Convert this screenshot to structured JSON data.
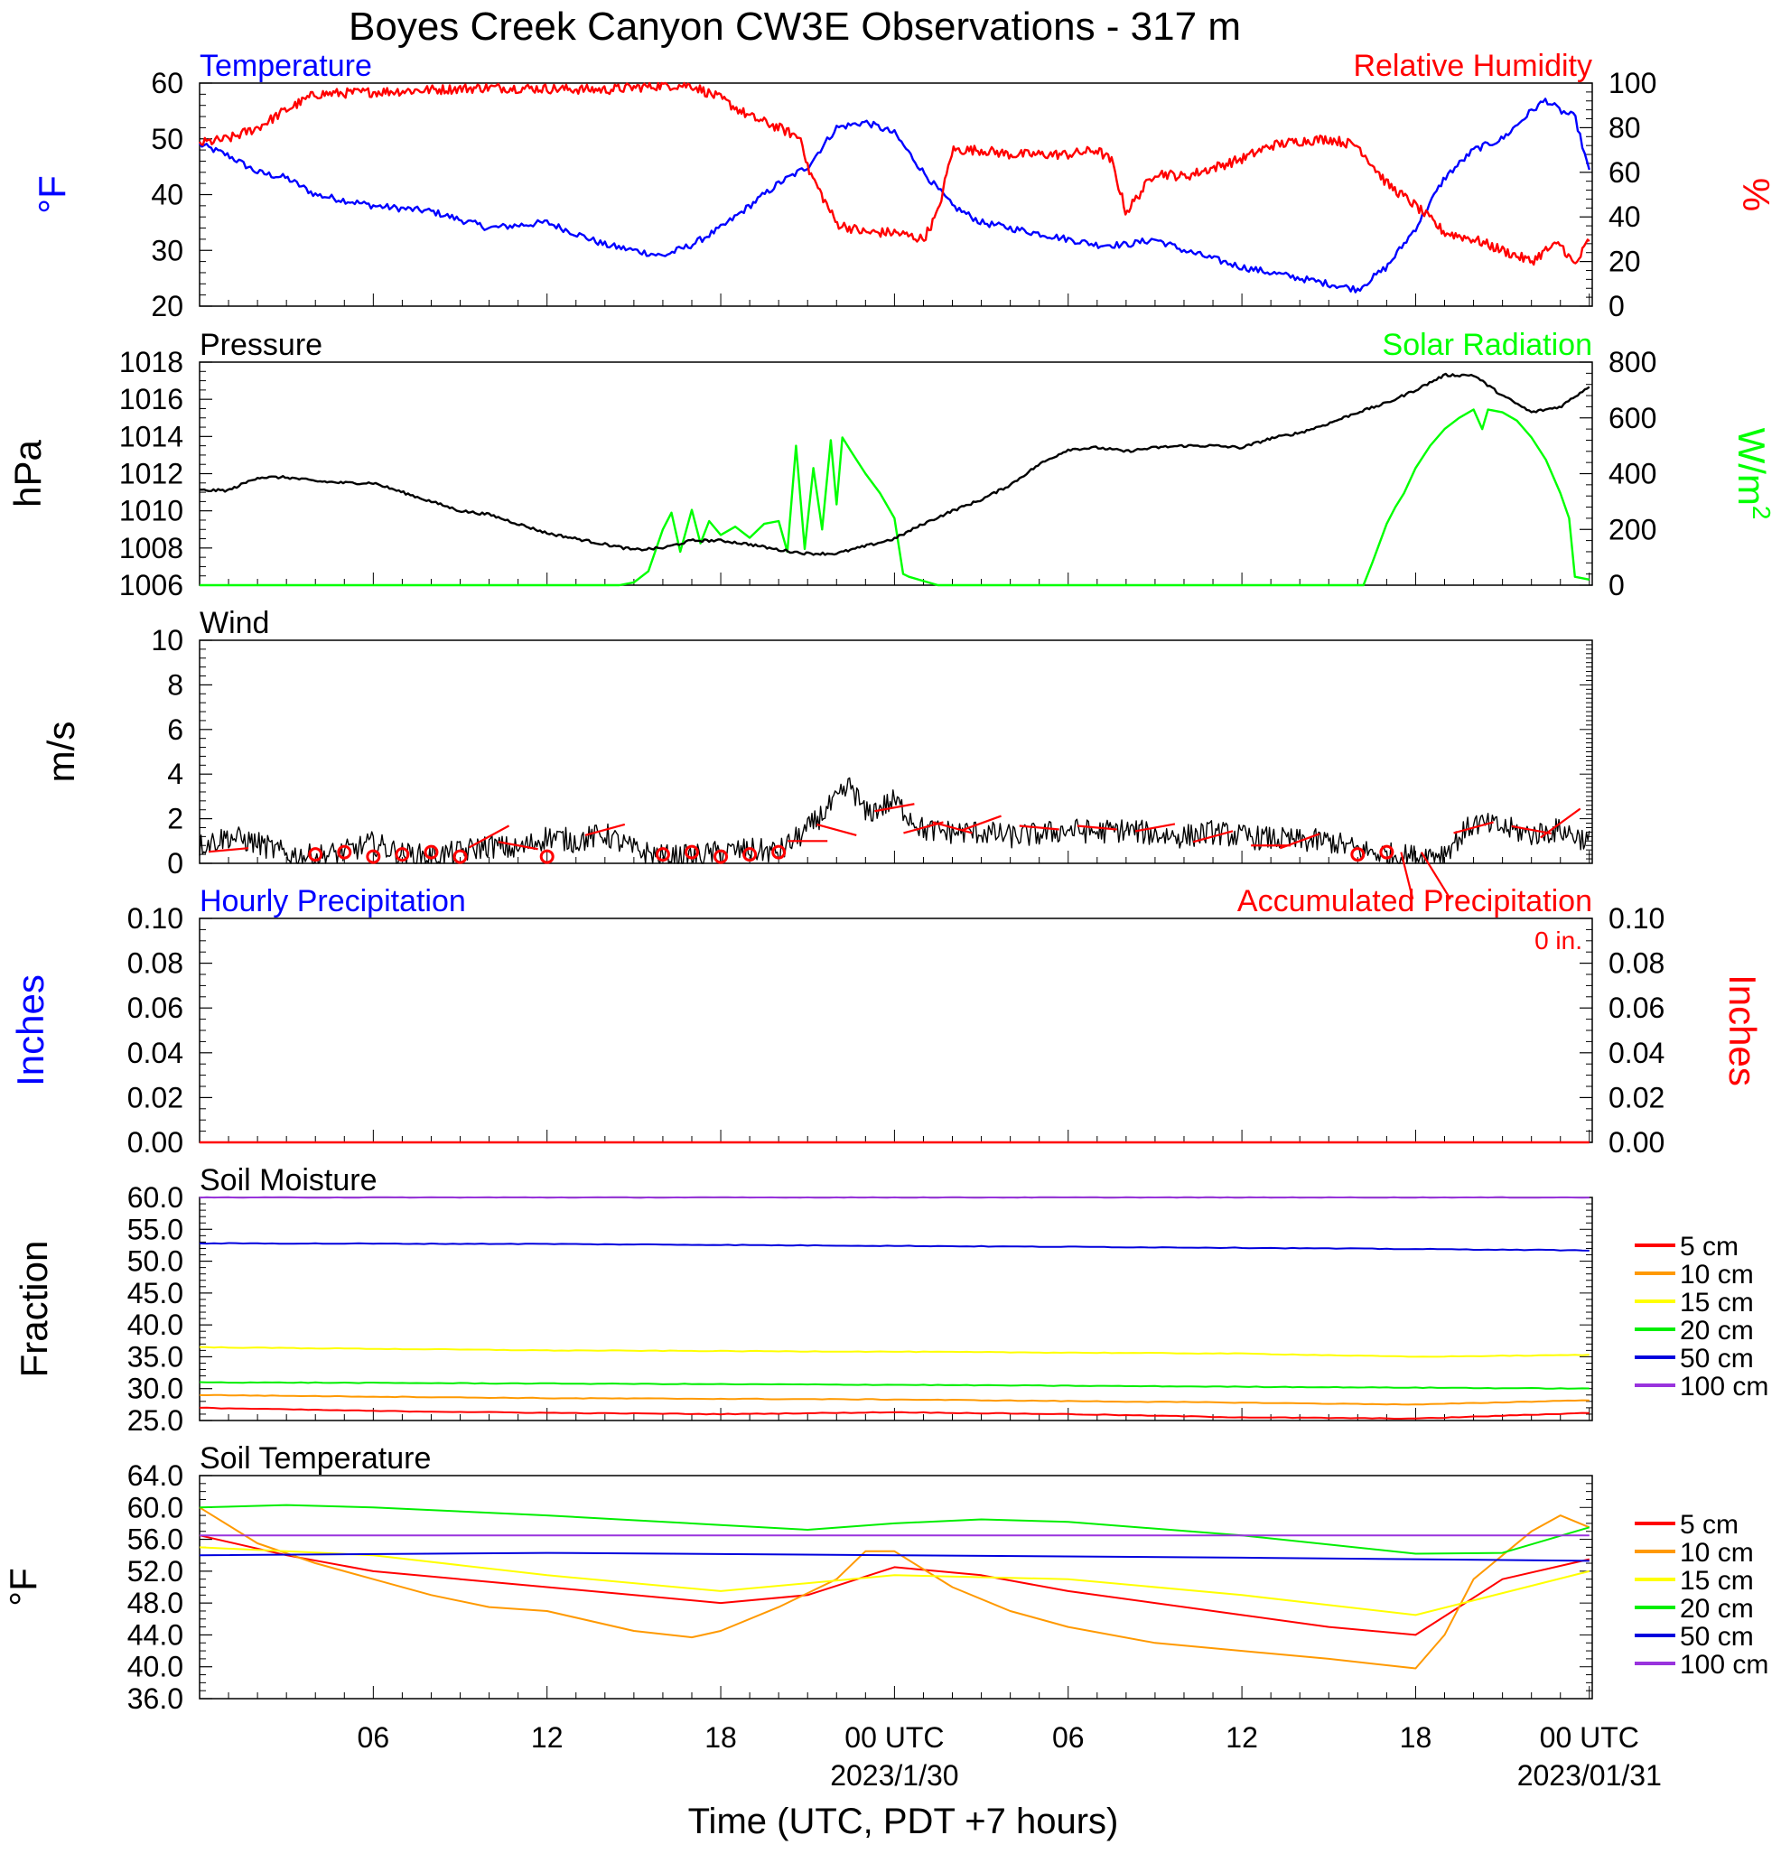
{
  "title": "Boyes Creek Canyon CW3E Observations - 317 m",
  "x_axis": {
    "label": "Time (UTC, PDT +7 hours)",
    "ticks": [
      {
        "hour": 6,
        "label": "06"
      },
      {
        "hour": 12,
        "label": "12"
      },
      {
        "hour": 18,
        "label": "18"
      },
      {
        "hour": 24,
        "label": "00 UTC",
        "sublabel": "2023/1/30"
      },
      {
        "hour": 30,
        "label": "06"
      },
      {
        "hour": 36,
        "label": "12"
      },
      {
        "hour": 42,
        "label": "18"
      },
      {
        "hour": 48,
        "label": "00 UTC",
        "sublabel": "2023/01/31"
      }
    ],
    "range_hours": [
      0,
      48.1
    ]
  },
  "panels": {
    "temp_rh": {
      "left_title": "Temperature",
      "right_title": "Relative Humidity",
      "left_unit": "°F",
      "right_unit": "%",
      "left_ticks": [
        "20",
        "30",
        "40",
        "50",
        "60"
      ],
      "right_ticks": [
        "0",
        "20",
        "40",
        "60",
        "80",
        "100"
      ]
    },
    "pressure_solar": {
      "left_title": "Pressure",
      "right_title": "Solar Radiation",
      "left_unit": "hPa",
      "right_unit": "W/m",
      "right_unit_sup": "2",
      "left_ticks": [
        "1006",
        "1008",
        "1010",
        "1012",
        "1014",
        "1016",
        "1018"
      ],
      "right_ticks": [
        "0",
        "200",
        "400",
        "600",
        "800"
      ]
    },
    "wind": {
      "title": "Wind",
      "unit": "m/s",
      "ticks": [
        "0",
        "2",
        "4",
        "6",
        "8",
        "10"
      ]
    },
    "precip": {
      "left_title": "Hourly Precipitation",
      "right_title": "Accumulated Precipitation",
      "total_label": "0 in.",
      "left_unit": "Inches",
      "right_unit": "Inches",
      "left_ticks": [
        "0.00",
        "0.02",
        "0.04",
        "0.06",
        "0.08",
        "0.10"
      ],
      "right_ticks": [
        "0.00",
        "0.02",
        "0.04",
        "0.06",
        "0.08",
        "0.10"
      ]
    },
    "soil_moisture": {
      "title": "Soil Moisture",
      "unit": "Fraction",
      "ticks": [
        "25.0",
        "30.0",
        "35.0",
        "40.0",
        "45.0",
        "50.0",
        "55.0",
        "60.0"
      ]
    },
    "soil_temp": {
      "title": "Soil Temperature",
      "unit": "°F",
      "ticks": [
        "36.0",
        "40.0",
        "44.0",
        "48.0",
        "52.0",
        "56.0",
        "60.0",
        "64.0"
      ]
    }
  },
  "legend": {
    "entries": [
      {
        "label": "5 cm",
        "color": "#ff0000"
      },
      {
        "label": "10 cm",
        "color": "#ff9900"
      },
      {
        "label": "15 cm",
        "color": "#ffff00"
      },
      {
        "label": "20 cm",
        "color": "#00ee00"
      },
      {
        "label": "50 cm",
        "color": "#0000dd"
      },
      {
        "label": "100 cm",
        "color": "#9933dd"
      }
    ]
  },
  "colors": {
    "temperature": "#0000ff",
    "humidity": "#ff0000",
    "pressure": "#000000",
    "solar": "#00ff00",
    "wind_speed": "#000000",
    "wind_barb": "#ff0000",
    "precip_hourly": "#0000ff",
    "precip_accum": "#ff0000"
  },
  "chart_data": [
    {
      "type": "line",
      "title": "Temperature",
      "ylabel": "°F",
      "ylim": [
        20,
        60
      ],
      "x_units": "hours since 2023-01-29 00 UTC",
      "series": [
        {
          "name": "Temperature",
          "x": [
            0,
            1,
            2,
            3,
            4,
            6,
            8,
            10,
            12,
            14,
            16,
            17,
            18,
            20,
            21,
            22,
            23,
            24,
            25,
            26,
            27,
            28,
            30,
            31,
            32,
            33,
            34,
            36,
            38,
            39,
            40,
            41,
            42,
            43,
            44,
            45,
            46,
            46.5,
            47,
            47.5,
            48
          ],
          "y": [
            49,
            47,
            44,
            43,
            40,
            38,
            37,
            34,
            35,
            31,
            29,
            31,
            34,
            42,
            45,
            52,
            53,
            51,
            44,
            38,
            35,
            34,
            32,
            31,
            31,
            32,
            30,
            27,
            25,
            24,
            23,
            27,
            34,
            43,
            48,
            50,
            55,
            57,
            55,
            54,
            44
          ]
        }
      ]
    },
    {
      "type": "line",
      "title": "Relative Humidity",
      "ylabel": "%",
      "ylim": [
        0,
        100
      ],
      "x_units": "hours since 2023-01-29 00 UTC",
      "series": [
        {
          "name": "Relative Humidity",
          "x": [
            0,
            1,
            2,
            3,
            4,
            6,
            10,
            14,
            16,
            17,
            18,
            19,
            20,
            20.8,
            21,
            22,
            23,
            24,
            25,
            25.5,
            26,
            27,
            28,
            30,
            31,
            31.5,
            32,
            33,
            34,
            36,
            37,
            38,
            39,
            40,
            41,
            42,
            43,
            44,
            46,
            46.5,
            47,
            47.5,
            48
          ],
          "y": [
            73,
            75,
            80,
            88,
            95,
            96,
            98,
            97,
            99,
            99,
            93,
            85,
            80,
            75,
            62,
            37,
            33,
            33,
            30,
            42,
            70,
            70,
            68,
            68,
            70,
            65,
            42,
            60,
            58,
            66,
            72,
            74,
            75,
            72,
            55,
            45,
            33,
            30,
            20,
            25,
            28,
            18,
            30
          ]
        }
      ]
    },
    {
      "type": "line",
      "title": "Pressure",
      "ylabel": "hPa",
      "ylim": [
        1006,
        1018
      ],
      "x_units": "hours since 2023-01-29 00 UTC",
      "series": [
        {
          "name": "Pressure",
          "x": [
            0,
            1,
            2,
            3,
            4,
            5,
            6,
            7,
            8,
            9,
            10,
            11,
            12,
            13,
            14,
            15,
            16,
            17,
            18,
            19,
            20,
            21,
            22,
            23,
            24,
            25,
            26,
            27,
            28,
            29,
            30,
            31,
            32,
            33,
            34,
            35,
            36,
            37,
            38,
            39,
            40,
            41,
            42,
            43,
            44,
            45,
            46,
            47,
            48
          ],
          "y": [
            1011.1,
            1011.1,
            1011.8,
            1011.8,
            1011.6,
            1011.5,
            1011.5,
            1011.0,
            1010.5,
            1010.0,
            1009.8,
            1009.3,
            1008.8,
            1008.5,
            1008.2,
            1007.9,
            1008.0,
            1008.4,
            1008.4,
            1008.2,
            1007.9,
            1007.7,
            1007.7,
            1008.1,
            1008.5,
            1009.3,
            1010.0,
            1010.6,
            1011.4,
            1012.5,
            1013.3,
            1013.4,
            1013.2,
            1013.4,
            1013.5,
            1013.5,
            1013.4,
            1013.9,
            1014.2,
            1014.7,
            1015.3,
            1015.8,
            1016.5,
            1017.3,
            1017.3,
            1016.2,
            1015.3,
            1015.6,
            1016.7
          ]
        }
      ]
    },
    {
      "type": "line",
      "title": "Solar Radiation",
      "ylabel": "W/m2",
      "ylim": [
        0,
        800
      ],
      "x_units": "hours since 2023-01-29 00 UTC",
      "series": [
        {
          "name": "Solar Radiation",
          "x": [
            0,
            0.5,
            1,
            14.5,
            15,
            15.5,
            16,
            16.3,
            16.6,
            17,
            17.3,
            17.6,
            18,
            18.5,
            19,
            19.5,
            20,
            20.3,
            20.6,
            20.9,
            21.2,
            21.5,
            21.8,
            22,
            22.2,
            22.5,
            23,
            23.5,
            24,
            24.3,
            24.5,
            25.5,
            40.2,
            40.5,
            41,
            41.3,
            41.6,
            42,
            42.5,
            43,
            43.5,
            44,
            44.3,
            44.5,
            45,
            45.5,
            46,
            46.5,
            47,
            47.3,
            47.5,
            48
          ],
          "y": [
            0,
            0,
            0,
            0,
            10,
            50,
            200,
            260,
            120,
            270,
            150,
            230,
            180,
            210,
            170,
            220,
            230,
            120,
            500,
            130,
            420,
            200,
            520,
            290,
            530,
            480,
            400,
            330,
            240,
            40,
            30,
            0,
            0,
            80,
            220,
            280,
            330,
            420,
            500,
            560,
            600,
            630,
            560,
            630,
            620,
            590,
            530,
            450,
            330,
            240,
            30,
            20
          ]
        }
      ]
    },
    {
      "type": "line",
      "title": "Wind",
      "ylabel": "m/s",
      "ylim": [
        0,
        10
      ],
      "x_units": "hours since 2023-01-29 00 UTC",
      "series": [
        {
          "name": "Wind speed",
          "x": [
            0,
            1,
            2,
            3,
            4,
            5,
            6,
            7,
            8,
            9,
            10,
            11,
            12,
            13,
            14,
            15,
            16,
            17,
            18,
            19,
            20,
            21,
            21.5,
            22,
            22.5,
            23,
            23.5,
            24,
            25,
            26,
            27,
            28,
            29,
            30,
            31,
            32,
            33,
            34,
            35,
            36,
            37,
            38,
            39,
            40,
            41,
            42,
            43,
            44,
            45,
            46,
            47,
            48
          ],
          "y": [
            0.8,
            1.2,
            0.9,
            0.4,
            0.3,
            0.5,
            0.9,
            0.4,
            0.3,
            0.5,
            0.8,
            0.6,
            1.2,
            1.0,
            1.3,
            0.6,
            0.3,
            0.3,
            0.5,
            0.6,
            0.5,
            1.5,
            2.2,
            2.8,
            3.5,
            2.2,
            2.5,
            2.8,
            1.5,
            1.4,
            1.4,
            1.2,
            1.3,
            1.5,
            1.4,
            1.5,
            1.3,
            1.2,
            1.4,
            1.2,
            1.1,
            1.0,
            1.0,
            0.6,
            0.4,
            0.3,
            0.5,
            1.8,
            1.6,
            1.3,
            1.5,
            1.0
          ]
        }
      ]
    },
    {
      "type": "line",
      "title": "Hourly Precipitation",
      "ylabel": "Inches",
      "ylim": [
        0,
        0.1
      ],
      "x_units": "hours since 2023-01-29 00 UTC",
      "series": [
        {
          "name": "Hourly Precipitation",
          "x": [
            0,
            48
          ],
          "y": [
            0,
            0
          ]
        },
        {
          "name": "Accumulated Precipitation",
          "x": [
            0,
            48
          ],
          "y": [
            0,
            0
          ]
        }
      ]
    },
    {
      "type": "line",
      "title": "Soil Moisture",
      "ylabel": "Fraction",
      "ylim": [
        25,
        60
      ],
      "x_units": "hours since 2023-01-29 00 UTC",
      "series": [
        {
          "name": "5 cm",
          "x": [
            0,
            6,
            12,
            18,
            24,
            30,
            36,
            42,
            48
          ],
          "y": [
            27.0,
            26.5,
            26.2,
            26.0,
            26.3,
            26.0,
            25.5,
            25.3,
            26.2
          ]
        },
        {
          "name": "10 cm",
          "x": [
            0,
            12,
            24,
            36,
            42,
            48
          ],
          "y": [
            29.0,
            28.5,
            28.3,
            27.8,
            27.5,
            28.2
          ]
        },
        {
          "name": "15 cm",
          "x": [
            0,
            12,
            24,
            36,
            42,
            48
          ],
          "y": [
            36.5,
            36.0,
            35.8,
            35.5,
            35.0,
            35.3
          ]
        },
        {
          "name": "20 cm",
          "x": [
            0,
            12,
            24,
            36,
            48
          ],
          "y": [
            31.0,
            30.8,
            30.6,
            30.3,
            30.0
          ]
        },
        {
          "name": "50 cm",
          "x": [
            0,
            12,
            24,
            36,
            48
          ],
          "y": [
            52.8,
            52.7,
            52.4,
            52.1,
            51.7
          ]
        },
        {
          "name": "100 cm",
          "x": [
            0,
            48
          ],
          "y": [
            60.0,
            60.0
          ]
        }
      ]
    },
    {
      "type": "line",
      "title": "Soil Temperature",
      "ylabel": "°F",
      "ylim": [
        36,
        64
      ],
      "x_units": "hours since 2023-01-29 00 UTC",
      "series": [
        {
          "name": "5 cm",
          "x": [
            0,
            3,
            6,
            9,
            12,
            15,
            18,
            21,
            24,
            27,
            30,
            33,
            36,
            39,
            42,
            45,
            48
          ],
          "y": [
            56.5,
            54.0,
            52.0,
            51.0,
            50.0,
            49.0,
            48.0,
            49.0,
            52.5,
            51.5,
            49.5,
            48.0,
            46.5,
            45.0,
            44.0,
            51.0,
            53.5
          ]
        },
        {
          "name": "10 cm",
          "x": [
            0,
            2,
            4,
            6,
            8,
            10,
            12,
            15,
            17,
            18,
            20,
            22,
            23,
            24,
            26,
            28,
            30,
            33,
            36,
            39,
            42,
            43,
            44,
            46,
            47,
            48
          ],
          "y": [
            60.0,
            55.5,
            53.0,
            51.0,
            49.0,
            47.5,
            47.0,
            44.5,
            43.7,
            44.5,
            47.5,
            51.0,
            54.5,
            54.5,
            50.0,
            47.0,
            45.0,
            43.0,
            42.0,
            41.0,
            39.8,
            44.0,
            51.0,
            57.0,
            59.0,
            57.5
          ]
        },
        {
          "name": "15 cm",
          "x": [
            0,
            6,
            12,
            18,
            24,
            30,
            36,
            42,
            48
          ],
          "y": [
            55.0,
            54.0,
            51.5,
            49.5,
            51.5,
            51.0,
            49.0,
            46.5,
            52.0
          ]
        },
        {
          "name": "20 cm",
          "x": [
            0,
            3,
            6,
            12,
            18,
            21,
            24,
            27,
            30,
            36,
            42,
            45,
            48
          ],
          "y": [
            60.0,
            60.3,
            60.0,
            59.0,
            57.8,
            57.2,
            58.0,
            58.5,
            58.2,
            56.5,
            54.2,
            54.3,
            57.5
          ]
        },
        {
          "name": "50 cm",
          "x": [
            0,
            12,
            24,
            36,
            48
          ],
          "y": [
            54.0,
            54.3,
            54.0,
            53.7,
            53.3
          ]
        },
        {
          "name": "100 cm",
          "x": [
            0,
            48
          ],
          "y": [
            56.5,
            56.5
          ]
        }
      ]
    }
  ]
}
